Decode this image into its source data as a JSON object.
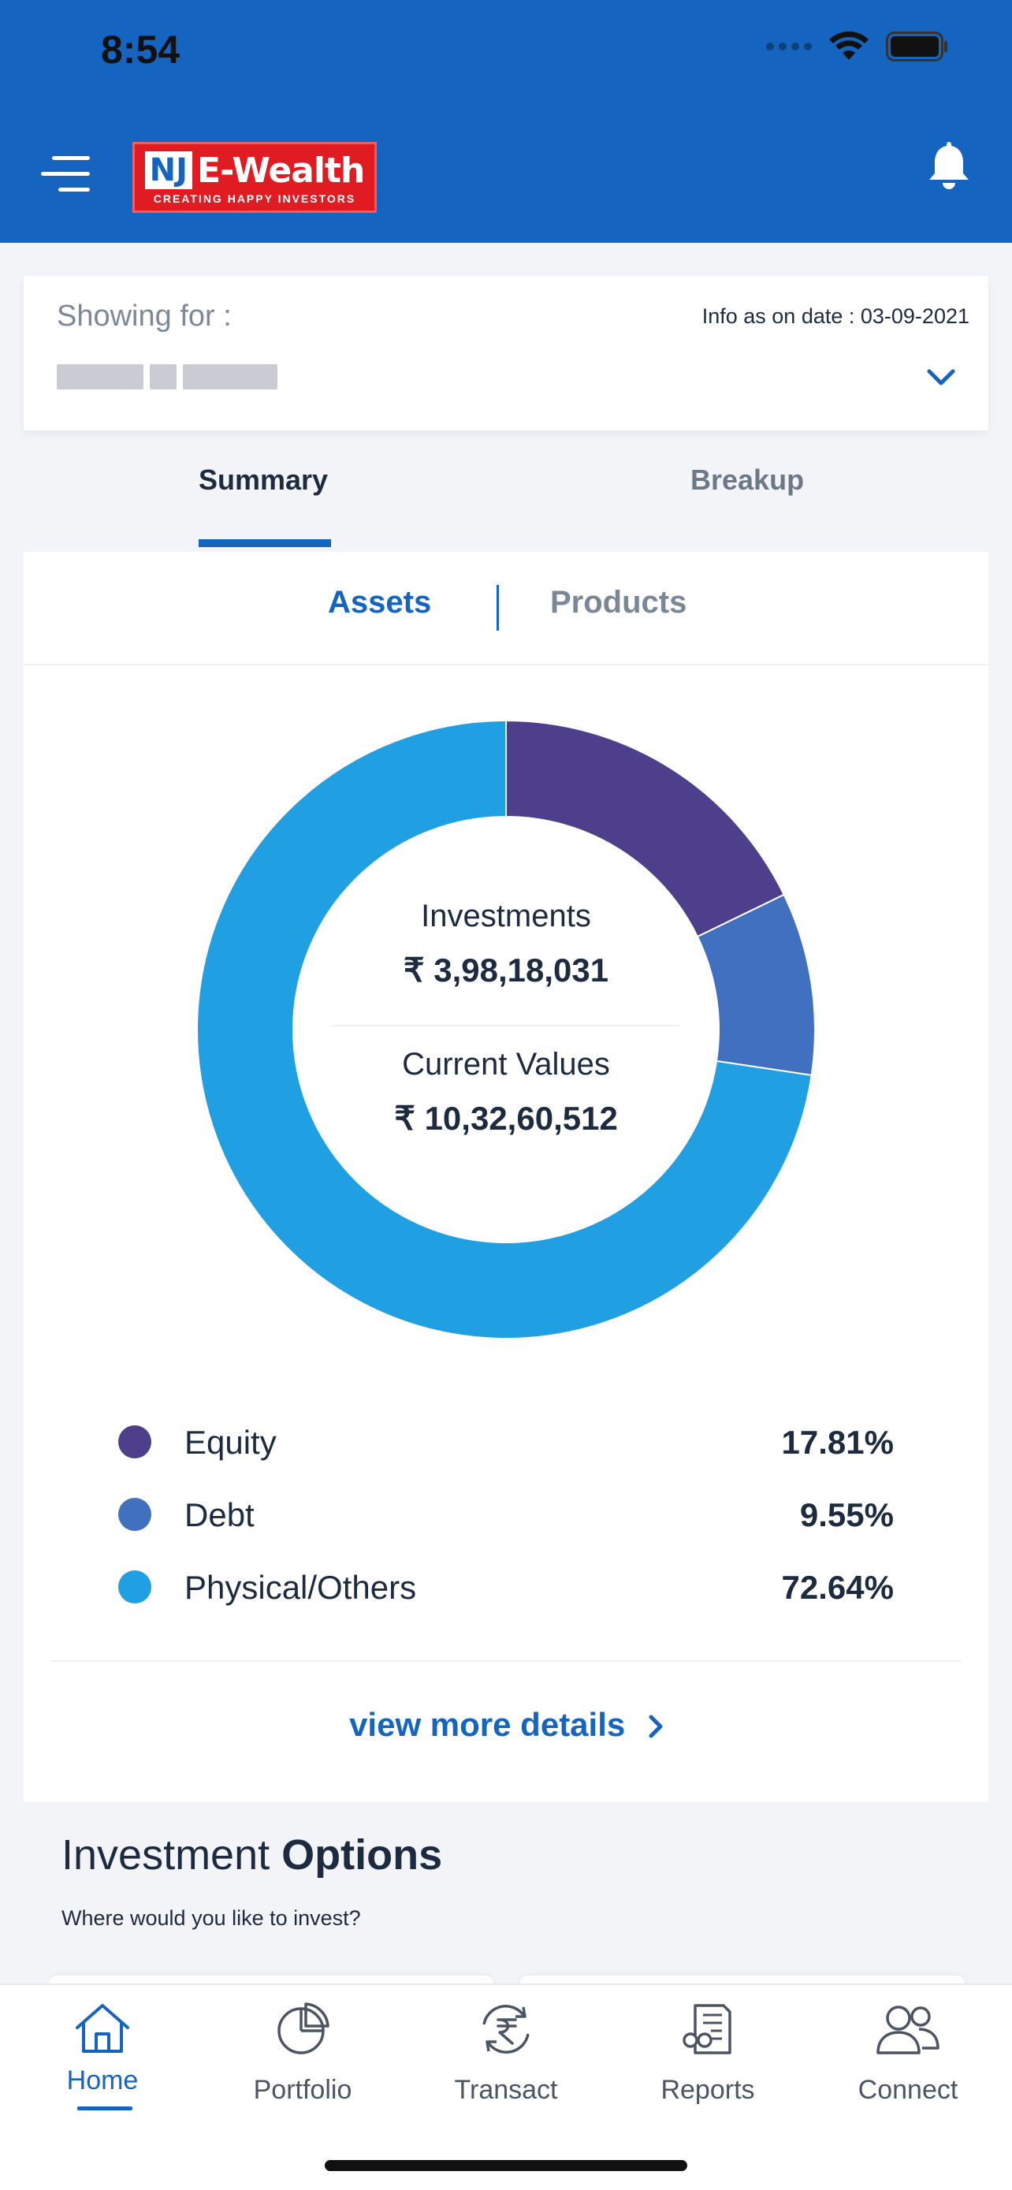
{
  "status_bar": {
    "time": "8:54"
  },
  "header": {
    "logo": {
      "mark": "NJ",
      "name": "E-Wealth",
      "tagline": "CREATING HAPPY INVESTORS"
    }
  },
  "showing": {
    "label": "Showing for :",
    "info_date": "Info as on date : 03-09-2021"
  },
  "tabs": [
    {
      "label": "Summary",
      "active": true
    },
    {
      "label": "Breakup",
      "active": false
    }
  ],
  "subtabs": [
    {
      "label": "Assets",
      "active": true
    },
    {
      "label": "Products",
      "active": false
    }
  ],
  "chart_data": {
    "type": "pie",
    "donut": true,
    "categories": [
      "Equity",
      "Debt",
      "Physical/Others"
    ],
    "values": [
      17.81,
      9.55,
      72.64
    ],
    "colors": [
      "#4e3f8d",
      "#4270c1",
      "#20a0e2"
    ]
  },
  "center": {
    "investments_label": "Investments",
    "investments_value": "₹ 3,98,18,031",
    "current_label": "Current Values",
    "current_value": "₹ 10,32,60,512"
  },
  "legend": [
    {
      "name": "Equity",
      "pct": "17.81%",
      "color": "#4e3f8d"
    },
    {
      "name": "Debt",
      "pct": "9.55%",
      "color": "#4270c1"
    },
    {
      "name": "Physical/Others",
      "pct": "72.64%",
      "color": "#20a0e2"
    }
  ],
  "view_more": "view more details",
  "investment_options": {
    "title_light": "Investment ",
    "title_bold": "Options",
    "subtitle": "Where would you like to invest?"
  },
  "bottom_nav": [
    {
      "label": "Home",
      "icon": "home-icon",
      "active": true
    },
    {
      "label": "Portfolio",
      "icon": "pie-chart-icon",
      "active": false
    },
    {
      "label": "Transact",
      "icon": "rupee-exchange-icon",
      "active": false
    },
    {
      "label": "Reports",
      "icon": "report-icon",
      "active": false
    },
    {
      "label": "Connect",
      "icon": "people-icon",
      "active": false
    }
  ]
}
